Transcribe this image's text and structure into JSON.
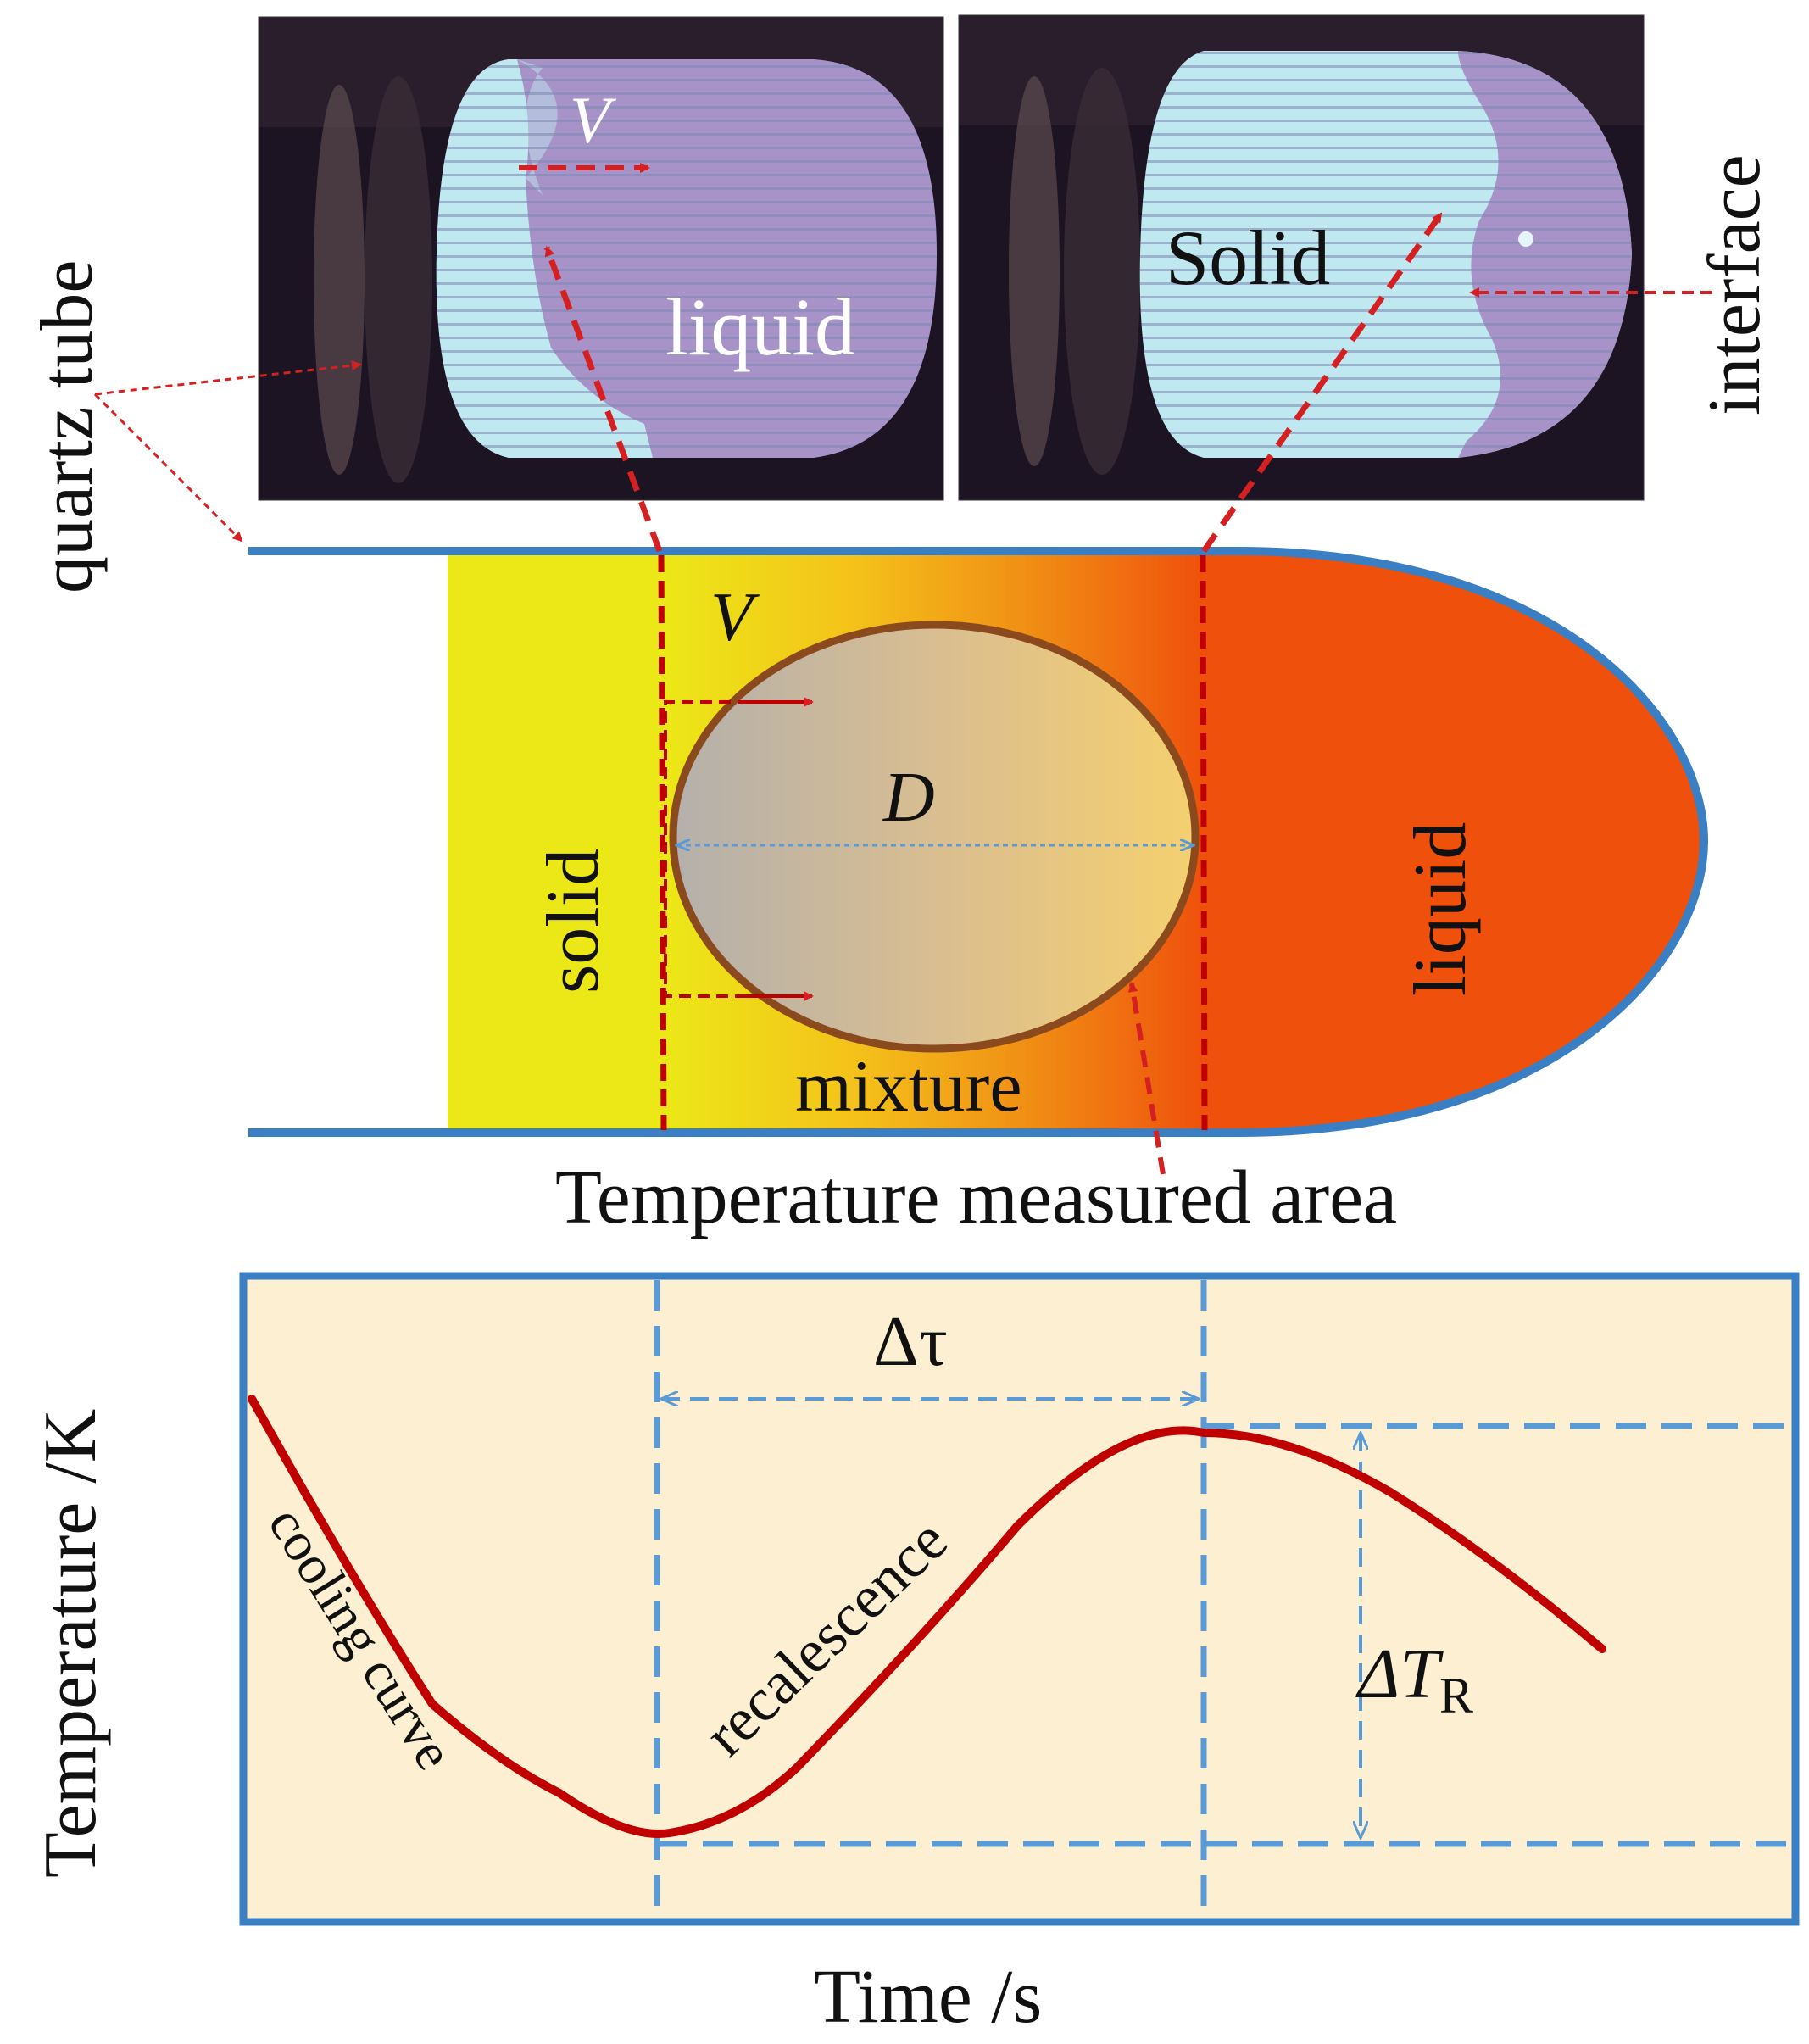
{
  "photos": {
    "left": {
      "liquid_label": "liquid",
      "velocity_label": "V"
    },
    "right": {
      "solid_label": "Solid"
    }
  },
  "labels": {
    "quartz_tube": "quartz tube",
    "interface": "interface"
  },
  "schematic": {
    "velocity_label": "V",
    "diameter_label": "D",
    "solid_label": "solid",
    "liquid_label": "liquid",
    "mixture_label": "mixture",
    "measured_area_label": "Temperature measured area"
  },
  "plot": {
    "ylabel": "Temperature /K",
    "xlabel": "Time /s",
    "delta_tau_label": "Δτ",
    "delta_T_main": "ΔT",
    "delta_T_sub": "R",
    "cooling_curve_label": "cooling curve",
    "recalescence_label": "recalescence"
  },
  "colors": {
    "tube_outline": "#3a7ec4",
    "solid_region": "#ece817",
    "liquid_region": "#ef500c",
    "curve": "#c00000",
    "plot_background": "#fcefd2",
    "guide_lines": "#5b9bd5",
    "arrow_red": "#d42020",
    "photo_glow": "#bfe8f0",
    "photo_purple": "#a893c8"
  }
}
